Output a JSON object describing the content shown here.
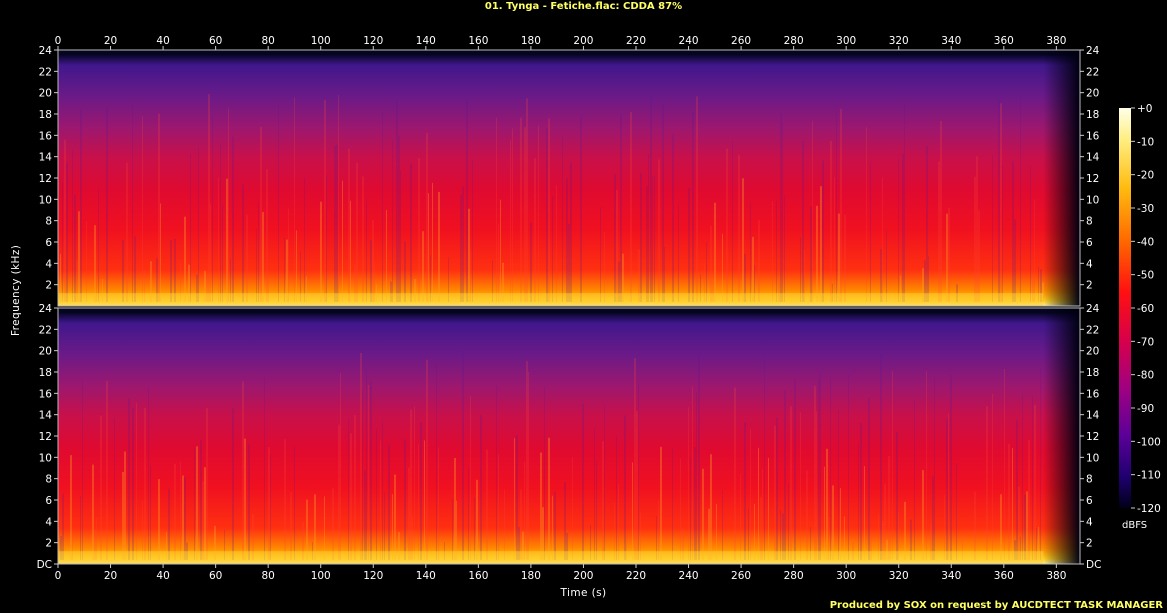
{
  "title": "01. Tynga - Fetiche.flac: CDDA 87%",
  "footer": "Produced by SOX on request by AUCDTECT TASK MANAGER",
  "chart_data": {
    "type": "heatmap",
    "title": "01. Tynga - Fetiche.flac: CDDA 87%",
    "xlabel": "Time (s)",
    "ylabel": "Frequency (kHz)",
    "xlim": [
      0,
      389
    ],
    "ylim": [
      0,
      24
    ],
    "x_ticks": [
      0,
      20,
      40,
      60,
      80,
      100,
      120,
      140,
      160,
      180,
      200,
      220,
      240,
      260,
      280,
      300,
      320,
      340,
      360,
      380
    ],
    "y_ticks": [
      "DC",
      "2",
      "4",
      "6",
      "8",
      "10",
      "12",
      "14",
      "16",
      "18",
      "20",
      "22",
      "24"
    ],
    "channels": [
      "top",
      "bottom"
    ],
    "colorbar": {
      "unit": "dBFS",
      "ticks": [
        "+0",
        "-10",
        "-20",
        "-30",
        "-40",
        "-50",
        "-60",
        "-70",
        "-80",
        "-90",
        "-100",
        "-110",
        "-120"
      ],
      "range": [
        -120,
        0
      ]
    },
    "lowpass_kHz": 23.5,
    "fade_out_start_s": 375
  }
}
